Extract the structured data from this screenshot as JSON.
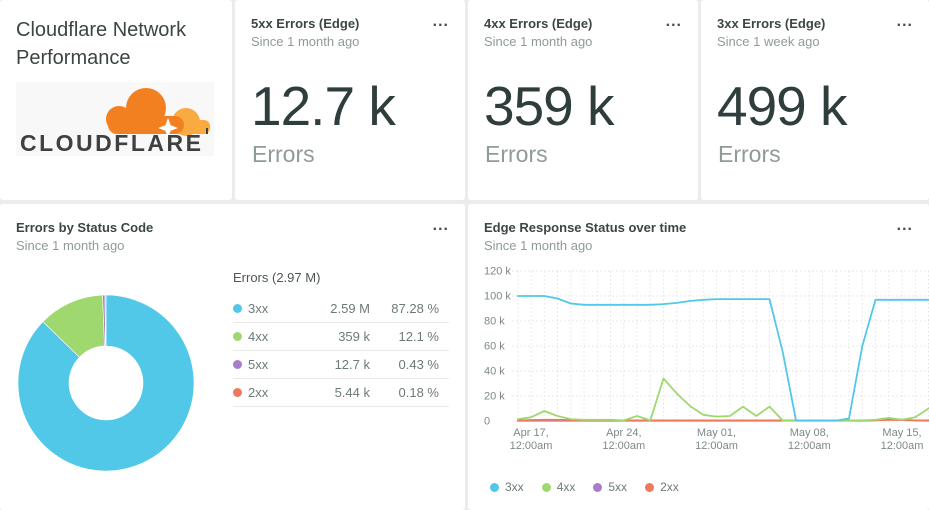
{
  "header_card": {
    "title": "Cloudflare Network Performance",
    "logo_text": "CLOUDFLARE"
  },
  "stat_cards": [
    {
      "title": "5xx Errors (Edge)",
      "subtitle": "Since 1 month ago",
      "value": "12.7 k",
      "unit": "Errors",
      "menu": "..."
    },
    {
      "title": "4xx Errors (Edge)",
      "subtitle": "Since 1 month ago",
      "value": "359 k",
      "unit": "Errors",
      "menu": "..."
    },
    {
      "title": "3xx Errors (Edge)",
      "subtitle": "Since 1 week ago",
      "value": "499 k",
      "unit": "Errors",
      "menu": "..."
    }
  ],
  "pie_card": {
    "title": "Errors by Status Code",
    "subtitle": "Since 1 month ago",
    "menu": "...",
    "legend_header": "Errors (2.97 M)",
    "rows": [
      {
        "label": "3xx",
        "value": "2.59 M",
        "pct": "87.28 %",
        "color": "#52c8e9"
      },
      {
        "label": "4xx",
        "value": "359 k",
        "pct": "12.1 %",
        "color": "#9ed86e"
      },
      {
        "label": "5xx",
        "value": "12.7 k",
        "pct": "0.43 %",
        "color": "#a87dcb"
      },
      {
        "label": "2xx",
        "value": "5.44 k",
        "pct": "0.18 %",
        "color": "#f0785c"
      }
    ]
  },
  "line_card": {
    "title": "Edge Response Status over time",
    "subtitle": "Since 1 month ago",
    "menu": "..."
  },
  "chart_data": [
    {
      "type": "pie",
      "donut": true,
      "title": "Errors by Status Code",
      "total_label": "Errors (2.97 M)",
      "slices": [
        {
          "label": "3xx",
          "value_text": "2.59 M",
          "pct": 87.28,
          "color": "#52c8e9"
        },
        {
          "label": "4xx",
          "value_text": "359 k",
          "pct": 12.1,
          "color": "#9ed86e"
        },
        {
          "label": "5xx",
          "value_text": "12.7 k",
          "pct": 0.43,
          "color": "#a87dcb"
        },
        {
          "label": "2xx",
          "value_text": "5.44 k",
          "pct": 0.18,
          "color": "#f0785c"
        }
      ]
    },
    {
      "type": "line",
      "title": "Edge Response Status over time",
      "grid": "dotted",
      "legend_position": "bottom",
      "ylim_k": [
        0,
        120
      ],
      "y_tick_labels": [
        "120 k",
        "100 k",
        "80 k",
        "60 k",
        "40 k",
        "20 k",
        "0"
      ],
      "x_ticks": [
        {
          "line1": "Apr 17,",
          "line2": "12:00am",
          "day_index": 1
        },
        {
          "line1": "Apr 24,",
          "line2": "12:00am",
          "day_index": 8
        },
        {
          "line1": "May 01,",
          "line2": "12:00am",
          "day_index": 15
        },
        {
          "line1": "May 08,",
          "line2": "12:00am",
          "day_index": 22
        },
        {
          "line1": "May 15,",
          "line2": "12:00am",
          "day_index": 29
        }
      ],
      "series": [
        {
          "name": "3xx",
          "color": "#52c8e9",
          "values_k": [
            100,
            100,
            100,
            98,
            94,
            93,
            93,
            93,
            93,
            93,
            93,
            93.5,
            94.5,
            96,
            97,
            97.5,
            97.5,
            97.5,
            97.5,
            97.5,
            55,
            0.5,
            0.3,
            0.3,
            0.3,
            2,
            60,
            97,
            97,
            97,
            97,
            97
          ]
        },
        {
          "name": "4xx",
          "color": "#9ed86e",
          "values_k": [
            1.5,
            3,
            8,
            4,
            1.5,
            1,
            1,
            1,
            0.5,
            4,
            0.5,
            34,
            22,
            12,
            5,
            3.5,
            4,
            11.5,
            4,
            11.5,
            0.3,
            0.3,
            0.3,
            0.3,
            0.3,
            0.3,
            0.5,
            1,
            2.5,
            1,
            3,
            10
          ]
        },
        {
          "name": "5xx",
          "color": "#a87dcb",
          "values_k": [
            0.25,
            0.25,
            0.25,
            0.25,
            0.25,
            0.25,
            0.25,
            0.25,
            0.25,
            0.25,
            0.25,
            0.25,
            0.25,
            0.25,
            0.25,
            0.25,
            0.25,
            0.25,
            0.25,
            0.25,
            0.25,
            0.25,
            0.25,
            0.25,
            0.25,
            0.25,
            0.25,
            0.6,
            1.3,
            1.2,
            0.4,
            0.25
          ]
        },
        {
          "name": "2xx",
          "color": "#f0785c",
          "values_k": [
            0.4,
            0.8,
            1,
            1,
            0.8,
            0.5,
            0.5,
            0.5,
            0.5,
            0.5,
            0.5,
            0.5,
            0.5,
            0.5,
            0.5,
            0.5,
            0.5,
            0.5,
            0.5,
            0.5,
            0.5,
            0.5,
            0.5,
            0.5,
            0.5,
            0.5,
            0.5,
            0.5,
            0.9,
            0.7,
            0.5,
            0.5
          ]
        }
      ]
    }
  ]
}
